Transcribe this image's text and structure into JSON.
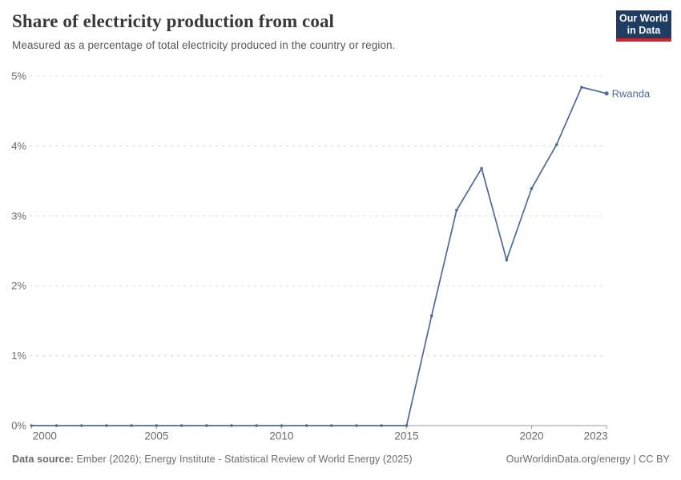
{
  "header": {
    "title": "Share of electricity production from coal",
    "subtitle": "Measured as a percentage of total electricity produced in the country or region.",
    "logo": {
      "line1": "Our World",
      "line2": "in Data",
      "bg_color": "#1d3d63",
      "accent_color": "#d2232e"
    }
  },
  "chart_data": {
    "type": "line",
    "title": "Share of electricity production from coal",
    "xlabel": "",
    "ylabel": "",
    "x": [
      2000,
      2001,
      2002,
      2003,
      2004,
      2005,
      2006,
      2007,
      2008,
      2009,
      2010,
      2011,
      2012,
      2013,
      2014,
      2015,
      2016,
      2017,
      2018,
      2019,
      2020,
      2021,
      2022,
      2023
    ],
    "series": [
      {
        "name": "Rwanda",
        "color": "#4c6a9c",
        "values": [
          0,
          0,
          0,
          0,
          0,
          0,
          0,
          0,
          0,
          0,
          0,
          0,
          0,
          0,
          0,
          0,
          1.57,
          3.08,
          3.68,
          2.37,
          3.39,
          4.02,
          4.84,
          4.75
        ]
      }
    ],
    "ylim": [
      0,
      5
    ],
    "yticks": [
      0,
      1,
      2,
      3,
      4,
      5
    ],
    "ytick_labels": [
      "0%",
      "1%",
      "2%",
      "3%",
      "4%",
      "5%"
    ],
    "xticks": [
      2000,
      2005,
      2010,
      2015,
      2020,
      2023
    ],
    "xtick_labels": [
      "2000",
      "2005",
      "2010",
      "2015",
      "2020",
      "2023"
    ],
    "grid": "horizontal-dashed",
    "legend_position": "end-of-line-label",
    "tick_color": "#6b6b6b",
    "grid_color": "#dcdcdc",
    "axis_color": "#9e9e9e"
  },
  "footer": {
    "datasource_label": "Data source:",
    "datasource_text": "Ember (2026); Energy Institute - Statistical Review of World Energy (2025)",
    "link_text": "OurWorldinData.org/energy | CC BY"
  }
}
